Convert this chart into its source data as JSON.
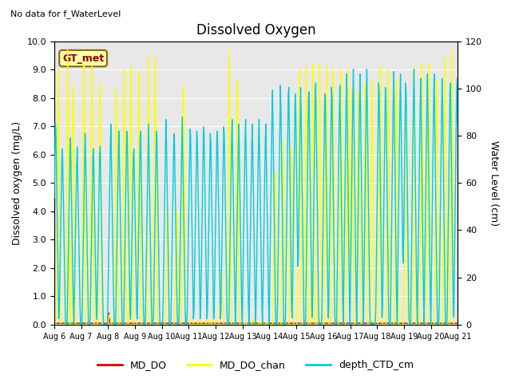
{
  "title": "Dissolved Oxygen",
  "top_left_text": "No data for f_WaterLevel",
  "annotation_text": "GT_met",
  "ylabel_left": "Dissolved oxygen (mg/L)",
  "ylabel_right": "Water Level (cm)",
  "ylim_left": [
    0.0,
    10.0
  ],
  "ylim_right": [
    0,
    120
  ],
  "yticks_left": [
    0.0,
    1.0,
    2.0,
    3.0,
    4.0,
    5.0,
    6.0,
    7.0,
    8.0,
    9.0,
    10.0
  ],
  "yticks_right": [
    0,
    20,
    40,
    60,
    80,
    100,
    120
  ],
  "xtick_labels": [
    "Aug 6",
    "Aug 7",
    "Aug 8",
    "Aug 9",
    "Aug 10",
    "Aug 11",
    "Aug 12",
    "Aug 13",
    "Aug 14",
    "Aug 15",
    "Aug 16",
    "Aug 17",
    "Aug 18",
    "Aug 19",
    "Aug 20",
    "Aug 21"
  ],
  "color_MD_DO": "#dd0000",
  "color_MD_DO_chan": "#ffff00",
  "color_depth_CTD_cm": "#00ccdd",
  "plot_bg_color": "#e8e8e8",
  "legend_labels": [
    "MD_DO",
    "MD_DO_chan",
    "depth_CTD_cm"
  ],
  "grid_color": "white",
  "linewidth": 1.0,
  "n_days": 15
}
